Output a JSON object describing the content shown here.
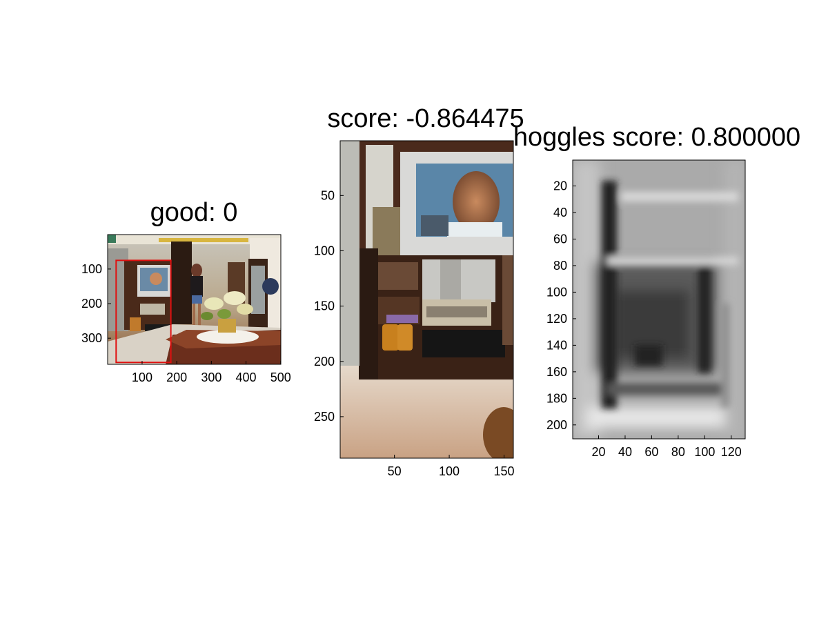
{
  "chart_data": [
    {
      "type": "image",
      "title": "good: 0",
      "image_width": 500,
      "image_height": 375,
      "xlim": [
        0.5,
        500.5
      ],
      "ylim": [
        0.5,
        375.5
      ],
      "y_reversed": true,
      "xticks": [
        100,
        200,
        300,
        400,
        500
      ],
      "yticks": [
        100,
        200,
        300
      ],
      "grid": false,
      "annotations": [
        {
          "type": "rectangle",
          "color": "#e01010",
          "x1": 25,
          "y1": 75,
          "x2": 183,
          "y2": 370
        }
      ]
    },
    {
      "type": "image",
      "title": "score: -0.864475",
      "image_width": 158,
      "image_height": 287,
      "xlim": [
        0.5,
        158.5
      ],
      "ylim": [
        0.5,
        287.5
      ],
      "y_reversed": true,
      "xticks": [
        50,
        100,
        150
      ],
      "yticks": [
        50,
        100,
        150,
        200,
        250
      ],
      "grid": false
    },
    {
      "type": "heatmap",
      "colormap": "gray",
      "title": "hoggles score: 0.800000",
      "image_width": 130,
      "image_height": 210,
      "xlim": [
        0.5,
        130.5
      ],
      "ylim": [
        0.5,
        210.5
      ],
      "y_reversed": true,
      "xticks": [
        20,
        40,
        60,
        80,
        100,
        120
      ],
      "yticks": [
        20,
        40,
        60,
        80,
        100,
        120,
        140,
        160,
        180,
        200
      ],
      "grid": false
    }
  ]
}
